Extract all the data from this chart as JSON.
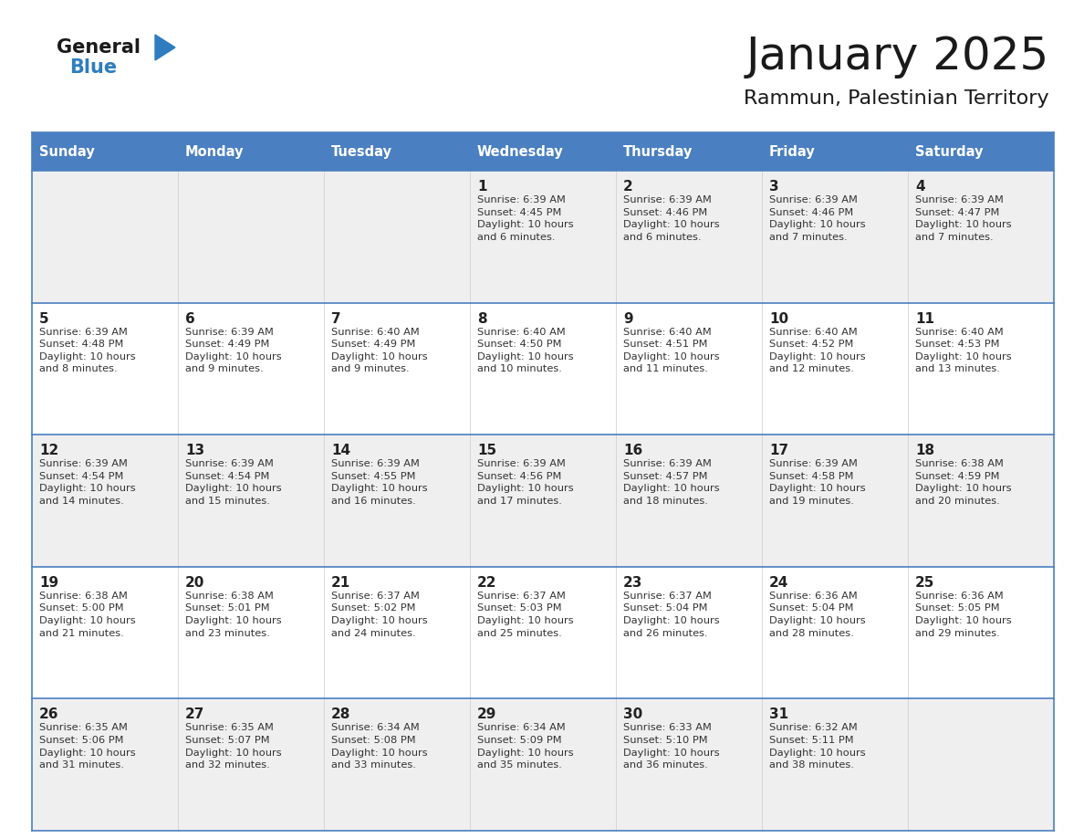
{
  "title": "January 2025",
  "subtitle": "Rammun, Palestinian Territory",
  "days_of_week": [
    "Sunday",
    "Monday",
    "Tuesday",
    "Wednesday",
    "Thursday",
    "Friday",
    "Saturday"
  ],
  "header_bg": "#4a7fc1",
  "header_text": "#FFFFFF",
  "row_bg_odd": "#EFEFEF",
  "row_bg_even": "#FFFFFF",
  "cell_border": "#4a7fc1",
  "weeks": [
    [
      {
        "day": "",
        "sunrise": "",
        "sunset": "",
        "daylight": ""
      },
      {
        "day": "",
        "sunrise": "",
        "sunset": "",
        "daylight": ""
      },
      {
        "day": "",
        "sunrise": "",
        "sunset": "",
        "daylight": ""
      },
      {
        "day": "1",
        "sunrise": "6:39 AM",
        "sunset": "4:45 PM",
        "daylight": "10 hours\nand 6 minutes."
      },
      {
        "day": "2",
        "sunrise": "6:39 AM",
        "sunset": "4:46 PM",
        "daylight": "10 hours\nand 6 minutes."
      },
      {
        "day": "3",
        "sunrise": "6:39 AM",
        "sunset": "4:46 PM",
        "daylight": "10 hours\nand 7 minutes."
      },
      {
        "day": "4",
        "sunrise": "6:39 AM",
        "sunset": "4:47 PM",
        "daylight": "10 hours\nand 7 minutes."
      }
    ],
    [
      {
        "day": "5",
        "sunrise": "6:39 AM",
        "sunset": "4:48 PM",
        "daylight": "10 hours\nand 8 minutes."
      },
      {
        "day": "6",
        "sunrise": "6:39 AM",
        "sunset": "4:49 PM",
        "daylight": "10 hours\nand 9 minutes."
      },
      {
        "day": "7",
        "sunrise": "6:40 AM",
        "sunset": "4:49 PM",
        "daylight": "10 hours\nand 9 minutes."
      },
      {
        "day": "8",
        "sunrise": "6:40 AM",
        "sunset": "4:50 PM",
        "daylight": "10 hours\nand 10 minutes."
      },
      {
        "day": "9",
        "sunrise": "6:40 AM",
        "sunset": "4:51 PM",
        "daylight": "10 hours\nand 11 minutes."
      },
      {
        "day": "10",
        "sunrise": "6:40 AM",
        "sunset": "4:52 PM",
        "daylight": "10 hours\nand 12 minutes."
      },
      {
        "day": "11",
        "sunrise": "6:40 AM",
        "sunset": "4:53 PM",
        "daylight": "10 hours\nand 13 minutes."
      }
    ],
    [
      {
        "day": "12",
        "sunrise": "6:39 AM",
        "sunset": "4:54 PM",
        "daylight": "10 hours\nand 14 minutes."
      },
      {
        "day": "13",
        "sunrise": "6:39 AM",
        "sunset": "4:54 PM",
        "daylight": "10 hours\nand 15 minutes."
      },
      {
        "day": "14",
        "sunrise": "6:39 AM",
        "sunset": "4:55 PM",
        "daylight": "10 hours\nand 16 minutes."
      },
      {
        "day": "15",
        "sunrise": "6:39 AM",
        "sunset": "4:56 PM",
        "daylight": "10 hours\nand 17 minutes."
      },
      {
        "day": "16",
        "sunrise": "6:39 AM",
        "sunset": "4:57 PM",
        "daylight": "10 hours\nand 18 minutes."
      },
      {
        "day": "17",
        "sunrise": "6:39 AM",
        "sunset": "4:58 PM",
        "daylight": "10 hours\nand 19 minutes."
      },
      {
        "day": "18",
        "sunrise": "6:38 AM",
        "sunset": "4:59 PM",
        "daylight": "10 hours\nand 20 minutes."
      }
    ],
    [
      {
        "day": "19",
        "sunrise": "6:38 AM",
        "sunset": "5:00 PM",
        "daylight": "10 hours\nand 21 minutes."
      },
      {
        "day": "20",
        "sunrise": "6:38 AM",
        "sunset": "5:01 PM",
        "daylight": "10 hours\nand 23 minutes."
      },
      {
        "day": "21",
        "sunrise": "6:37 AM",
        "sunset": "5:02 PM",
        "daylight": "10 hours\nand 24 minutes."
      },
      {
        "day": "22",
        "sunrise": "6:37 AM",
        "sunset": "5:03 PM",
        "daylight": "10 hours\nand 25 minutes."
      },
      {
        "day": "23",
        "sunrise": "6:37 AM",
        "sunset": "5:04 PM",
        "daylight": "10 hours\nand 26 minutes."
      },
      {
        "day": "24",
        "sunrise": "6:36 AM",
        "sunset": "5:04 PM",
        "daylight": "10 hours\nand 28 minutes."
      },
      {
        "day": "25",
        "sunrise": "6:36 AM",
        "sunset": "5:05 PM",
        "daylight": "10 hours\nand 29 minutes."
      }
    ],
    [
      {
        "day": "26",
        "sunrise": "6:35 AM",
        "sunset": "5:06 PM",
        "daylight": "10 hours\nand 31 minutes."
      },
      {
        "day": "27",
        "sunrise": "6:35 AM",
        "sunset": "5:07 PM",
        "daylight": "10 hours\nand 32 minutes."
      },
      {
        "day": "28",
        "sunrise": "6:34 AM",
        "sunset": "5:08 PM",
        "daylight": "10 hours\nand 33 minutes."
      },
      {
        "day": "29",
        "sunrise": "6:34 AM",
        "sunset": "5:09 PM",
        "daylight": "10 hours\nand 35 minutes."
      },
      {
        "day": "30",
        "sunrise": "6:33 AM",
        "sunset": "5:10 PM",
        "daylight": "10 hours\nand 36 minutes."
      },
      {
        "day": "31",
        "sunrise": "6:32 AM",
        "sunset": "5:11 PM",
        "daylight": "10 hours\nand 38 minutes."
      },
      {
        "day": "",
        "sunrise": "",
        "sunset": "",
        "daylight": ""
      }
    ]
  ],
  "logo_general_color": "#1a1a1a",
  "logo_blue_color": "#2E7DC0",
  "logo_triangle_color": "#2E7DC0"
}
